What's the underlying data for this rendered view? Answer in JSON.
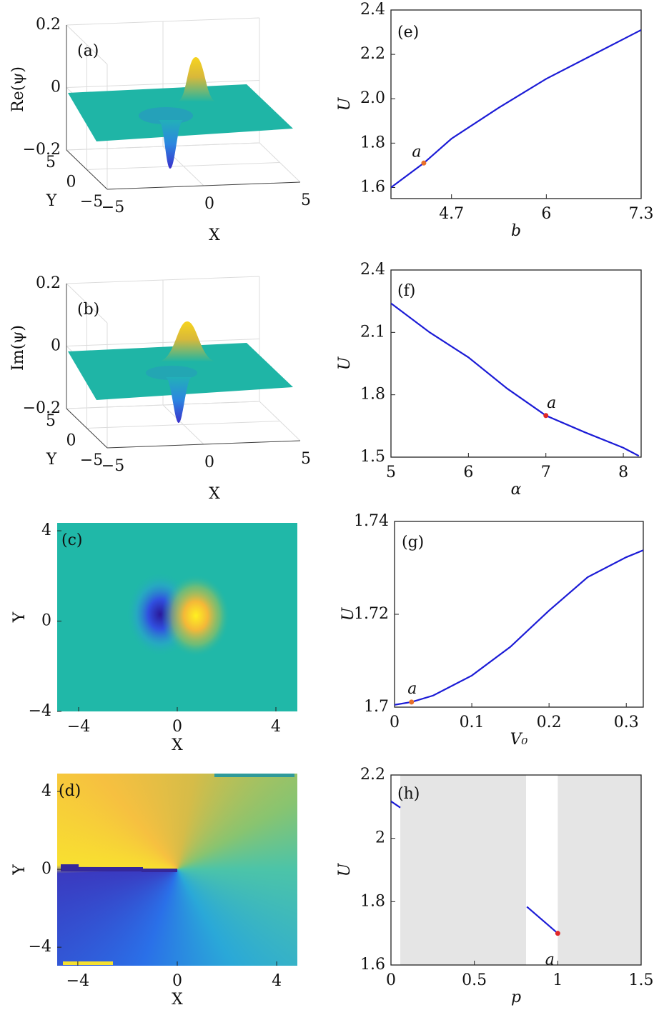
{
  "chart_data": [
    {
      "type": "surface3d",
      "panel_label": "(a)",
      "xlabel": "X",
      "ylabel": "Y",
      "zlabel": "Re(ψ)",
      "xlim": [
        -5,
        5
      ],
      "ylim": [
        -5,
        5
      ],
      "zlim": [
        -0.2,
        0.2
      ],
      "xticks": [
        {
          "value": -5,
          "label": "−5"
        },
        0,
        5
      ],
      "yticks": [
        {
          "value": -5,
          "label": "−5"
        },
        0,
        5
      ],
      "zticks": [
        {
          "value": -0.2,
          "label": "−0.2"
        },
        0,
        0.2
      ]
    },
    {
      "type": "surface3d",
      "panel_label": "(b)",
      "xlabel": "X",
      "ylabel": "Y",
      "zlabel": "Im(ψ)",
      "xlim": [
        -5,
        5
      ],
      "ylim": [
        -5,
        5
      ],
      "zlim": [
        -0.2,
        0.2
      ],
      "xticks": [
        {
          "value": -5,
          "label": "−5"
        },
        0,
        5
      ],
      "yticks": [
        {
          "value": -5,
          "label": "−5"
        },
        0,
        5
      ],
      "zticks": [
        {
          "value": -0.2,
          "label": "−0.2"
        },
        0,
        0.2
      ]
    },
    {
      "type": "heatmap",
      "panel_label": "(c)",
      "xlabel": "X",
      "ylabel": "Y",
      "xlim": [
        -4.87,
        4.87
      ],
      "ylim": [
        -4,
        4.35
      ],
      "xticks": [
        {
          "value": -4,
          "label": "−4"
        },
        0,
        4
      ],
      "yticks": [
        {
          "value": -4,
          "label": "−4"
        },
        0,
        4
      ]
    },
    {
      "type": "heatmap",
      "panel_label": "(d)",
      "xlabel": "X",
      "ylabel": "Y",
      "xlim": [
        -4.83,
        4.83
      ],
      "ylim": [
        -4.95,
        4.92
      ],
      "xticks": [
        {
          "value": -4,
          "label": "−4"
        },
        0,
        4
      ],
      "yticks": [
        {
          "value": -4,
          "label": "−4"
        },
        0,
        4
      ]
    },
    {
      "type": "line",
      "panel_label": "(e)",
      "xlabel": "b",
      "ylabel": "U",
      "xlim": [
        3.87,
        7.3
      ],
      "ylim": [
        1.55,
        2.4
      ],
      "xticks": [
        4.7,
        6,
        7.3
      ],
      "yticks": [
        1.6,
        1.8,
        {
          "value": 2,
          "label": "2.0"
        },
        2.2,
        2.4
      ],
      "series": [
        {
          "color": "#1c1cd6",
          "x": [
            3.87,
            4.32,
            4.7,
            5.35,
            6,
            6.65,
            7.3
          ],
          "values": [
            1.6,
            1.71,
            1.82,
            1.96,
            2.09,
            2.2,
            2.31
          ]
        }
      ],
      "points": [
        {
          "label": "a",
          "x": 4.32,
          "y": 1.71,
          "color": "#e8702a"
        }
      ]
    },
    {
      "type": "line",
      "panel_label": "(f)",
      "xlabel": "α",
      "ylabel": "U",
      "xlim": [
        5,
        8.23
      ],
      "ylim": [
        1.5,
        2.4
      ],
      "xticks": [
        5,
        6,
        7,
        8
      ],
      "yticks": [
        1.5,
        1.8,
        2.1,
        2.4
      ],
      "series": [
        {
          "color": "#1c1cd6",
          "x": [
            5,
            5.5,
            6,
            6.5,
            7,
            7.5,
            8,
            8.2
          ],
          "values": [
            2.24,
            2.1,
            1.98,
            1.83,
            1.7,
            1.62,
            1.545,
            1.506
          ]
        }
      ],
      "points": [
        {
          "label": "a",
          "x": 7,
          "y": 1.7,
          "color": "#e02828"
        }
      ]
    },
    {
      "type": "line",
      "panel_label": "(g)",
      "xlabel": "V₀",
      "ylabel": "U",
      "xlim": [
        0,
        0.322
      ],
      "ylim": [
        1.7,
        1.74
      ],
      "xticks": [
        0,
        0.1,
        0.2,
        0.3
      ],
      "yticks": [
        1.7,
        1.72,
        1.74
      ],
      "series": [
        {
          "color": "#1c1cd6",
          "x": [
            0,
            0.022,
            0.05,
            0.1,
            0.15,
            0.2,
            0.25,
            0.3,
            0.322
          ],
          "values": [
            1.7005,
            1.7011,
            1.7025,
            1.7068,
            1.713,
            1.7208,
            1.728,
            1.7323,
            1.7338
          ]
        }
      ],
      "points": [
        {
          "label": "a",
          "x": 0.022,
          "y": 1.7011,
          "color": "#e8702a"
        }
      ]
    },
    {
      "type": "line",
      "panel_label": "(h)",
      "xlabel": "p",
      "ylabel": "U",
      "xlim": [
        0,
        1.5
      ],
      "ylim": [
        1.6,
        2.2
      ],
      "xticks": [
        0,
        0.5,
        1,
        1.5
      ],
      "yticks": [
        1.6,
        1.8,
        2,
        2.2
      ],
      "shaded_regions": [
        [
          0.056,
          0.81
        ],
        [
          1,
          1.5
        ]
      ],
      "shade_color": "#e5e5e5",
      "series": [
        {
          "color": "#1c1cd6",
          "x": [
            0,
            0.056
          ],
          "values": [
            2.117,
            2.097
          ]
        },
        {
          "color": "#1c1cd6",
          "x": [
            0.815,
            1
          ],
          "values": [
            1.784,
            1.7
          ]
        }
      ],
      "points": [
        {
          "label": "a",
          "x": 1,
          "y": 1.7,
          "color": "#e02828"
        }
      ]
    }
  ]
}
